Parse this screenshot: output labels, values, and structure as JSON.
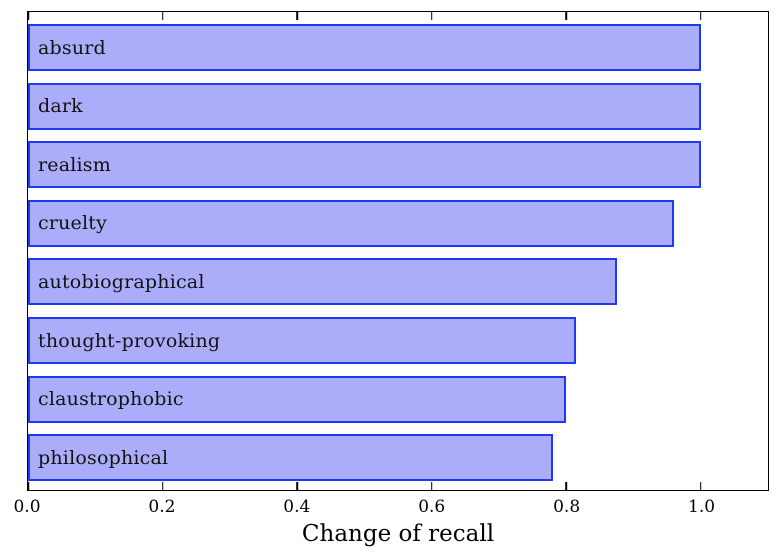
{
  "chart_data": {
    "type": "bar",
    "orientation": "horizontal",
    "title": "",
    "categories": [
      "absurd",
      "dark",
      "realism",
      "cruelty",
      "autobiographical",
      "thought-provoking",
      "claustrophobic",
      "philosophical"
    ],
    "values": [
      1.0,
      1.0,
      1.0,
      0.96,
      0.875,
      0.815,
      0.8,
      0.78
    ],
    "xlabel": "Change of recall",
    "ylabel": "",
    "xlim": [
      0.0,
      1.1
    ],
    "xticks": [
      0.0,
      0.2,
      0.4,
      0.6,
      0.8,
      1.0
    ],
    "xtick_labels": [
      "0.0",
      "0.2",
      "0.4",
      "0.6",
      "0.8",
      "1.0"
    ],
    "grid": false,
    "legend": "none",
    "label_position": "inside-left",
    "colors": {
      "bar_fill": "#acadfa",
      "bar_edge": "#2038ef",
      "frame": "#000000",
      "text": "#111111"
    }
  }
}
